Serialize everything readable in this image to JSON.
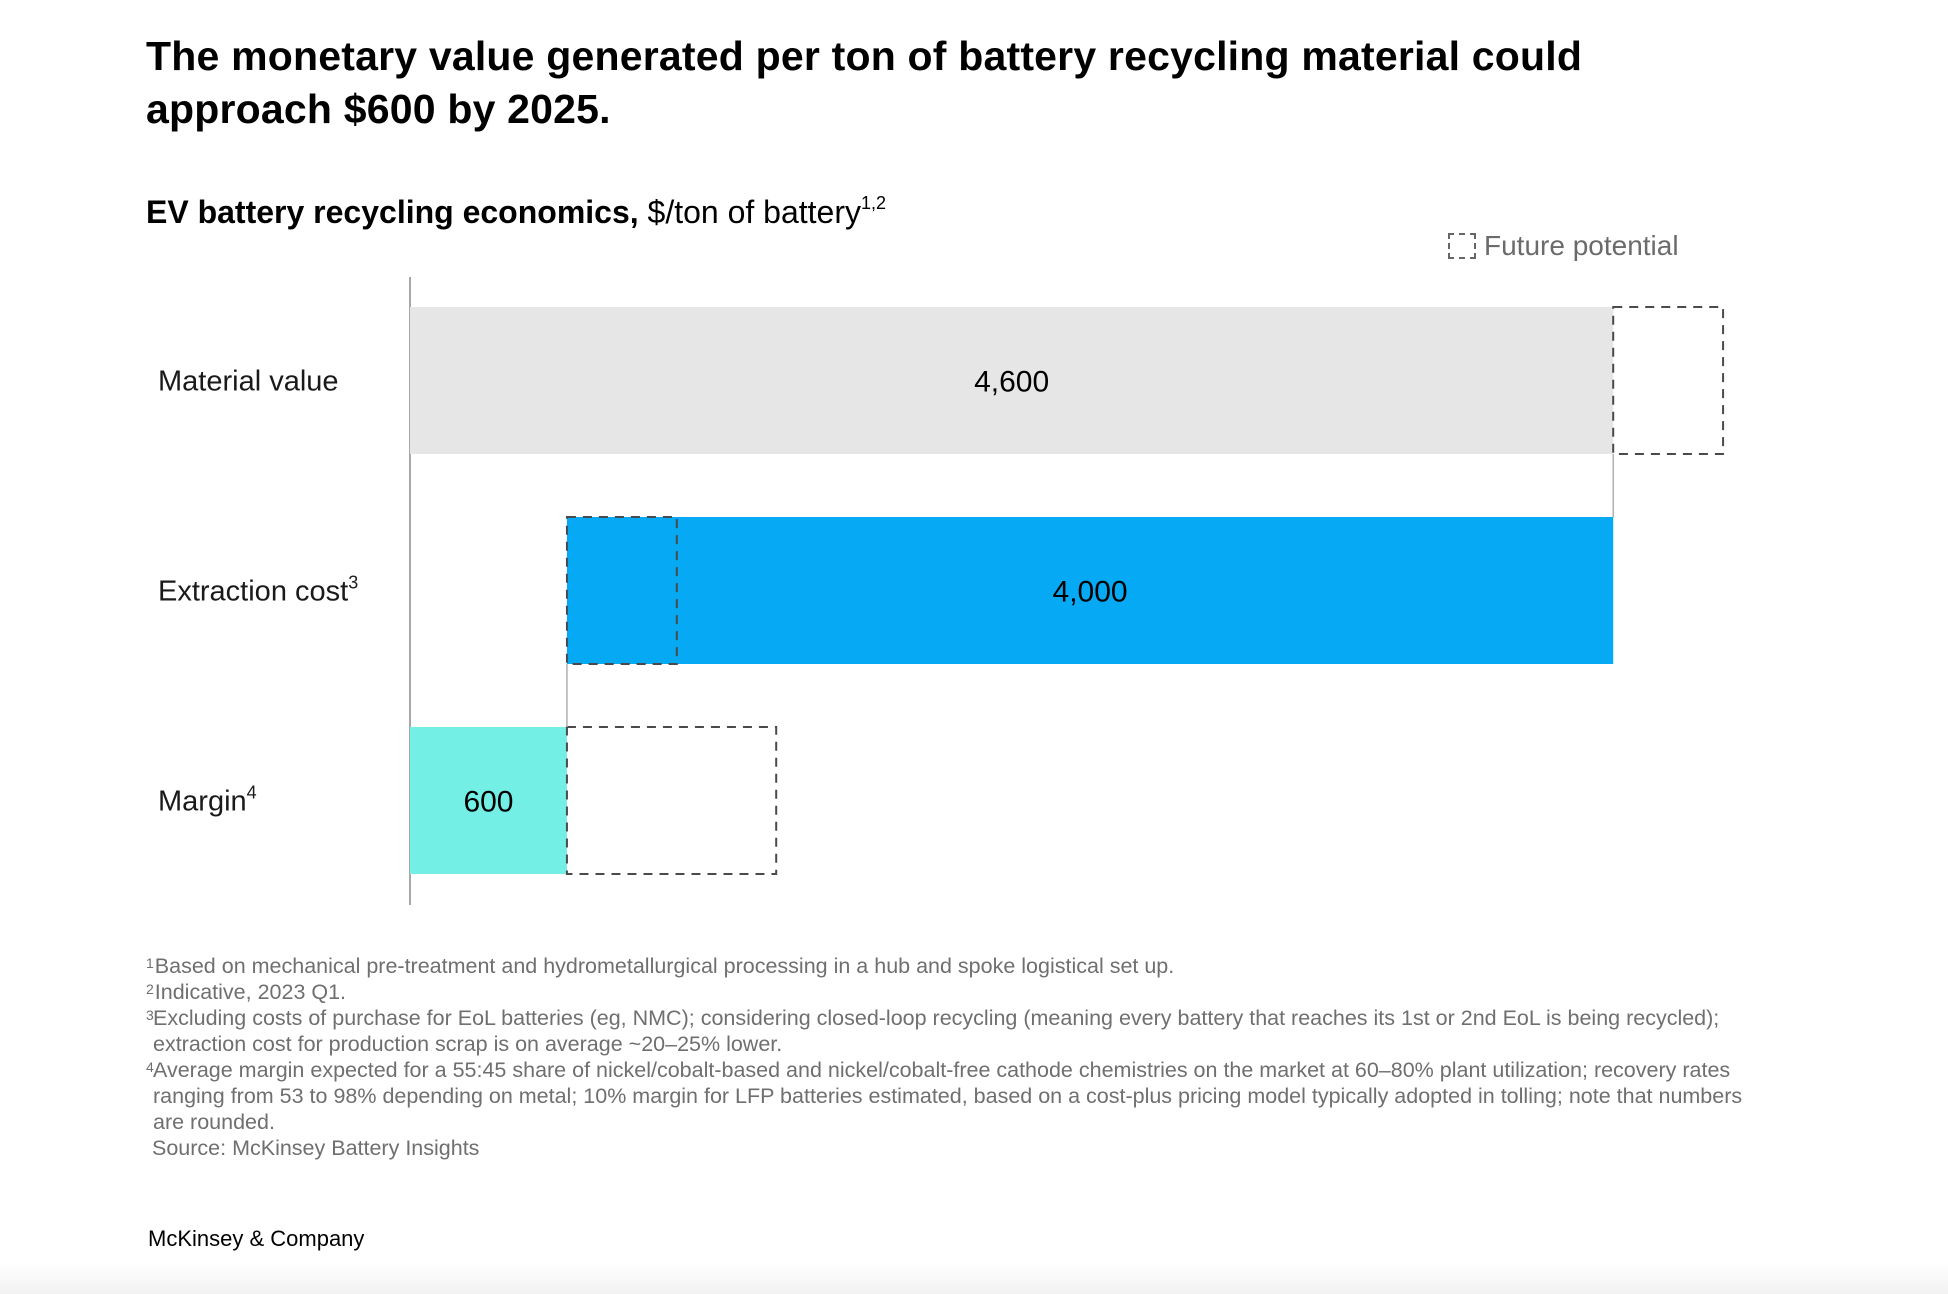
{
  "headline": "The monetary value generated per ton of battery recycling material could approach $600 by 2025.",
  "subtitle": {
    "bold": "EV battery recycling economics,",
    "unit": "$/ton of battery",
    "sup": "1,2"
  },
  "legend": {
    "label": "Future potential"
  },
  "chart_data": {
    "type": "bar",
    "orientation": "horizontal",
    "style": "waterfall",
    "categories": [
      {
        "label": "Material value",
        "sup": ""
      },
      {
        "label": "Extraction cost",
        "sup": "3"
      },
      {
        "label": "Margin",
        "sup": "4"
      }
    ],
    "bars": [
      {
        "start": 0,
        "end": 4600,
        "value_label": "4,600",
        "color": "#e6e6e6",
        "future_potential": {
          "start": 4600,
          "end": 5020
        }
      },
      {
        "start": 600,
        "end": 4600,
        "value_label": "4,000",
        "color": "#05a9f4",
        "future_potential": {
          "start": 600,
          "end": 1020
        }
      },
      {
        "start": 0,
        "end": 600,
        "value_label": "600",
        "color": "#74efe6",
        "future_potential": {
          "start": 600,
          "end": 1400
        }
      }
    ],
    "xlim": [
      0,
      5100
    ],
    "grid": false,
    "legend_position": "top-right"
  },
  "footnotes": [
    {
      "mark": "1",
      "text": "Based on mechanical pre-treatment and hydrometallurgical processing in a hub and spoke logistical set up."
    },
    {
      "mark": "2",
      "text": "Indicative, 2023 Q1."
    },
    {
      "mark": "3",
      "text": "Excluding costs of purchase for EoL batteries (eg, NMC); considering closed-loop recycling (meaning every battery that reaches its 1st or 2nd EoL is being recycled); extraction cost for production scrap is on average ~20–25% lower."
    },
    {
      "mark": "4",
      "text": "Average margin expected for a 55:45 share of nickel/cobalt-based and nickel/cobalt-free cathode chemistries on the market at 60–80% plant utilization; recovery rates ranging from 53 to 98% depending on metal; 10% margin for LFP batteries estimated, based on a cost-plus pricing model typically adopted in tolling; note that numbers are rounded."
    }
  ],
  "source": "Source: McKinsey Battery Insights",
  "brand": "McKinsey & Company"
}
